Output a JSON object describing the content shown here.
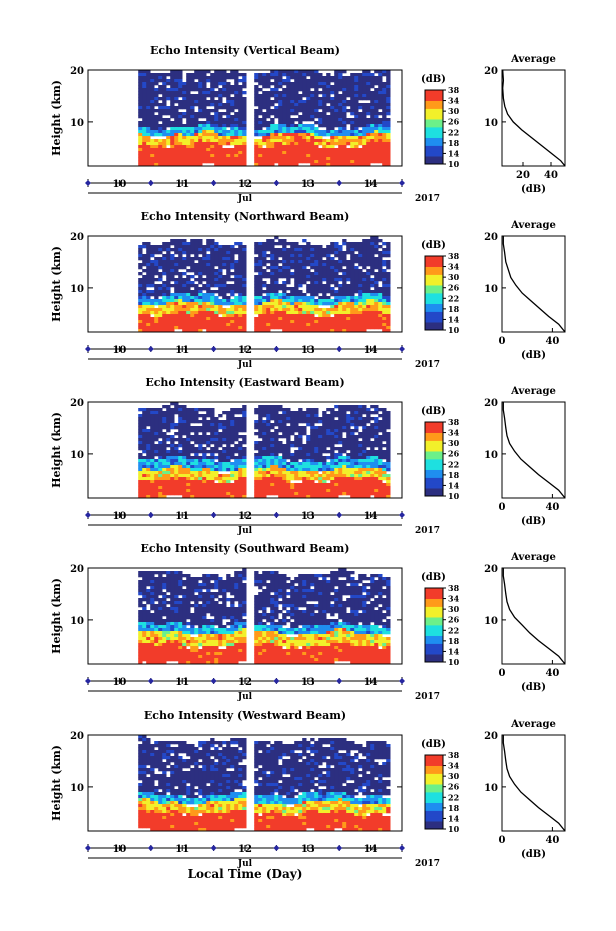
{
  "chart_data": [
    {
      "type": "heatmap",
      "title": "Echo Intensity (Vertical Beam)",
      "ylabel": "Height (km)",
      "ylim": [
        1.5,
        20
      ],
      "yticks": [
        10,
        20
      ],
      "xticks": [
        "10",
        "11",
        "12",
        "13",
        "14"
      ],
      "xlim": [
        9.5,
        14.5
      ],
      "month_label": "Jul",
      "year_label": "2017",
      "data_start_day": 10.3,
      "data_gap_day": 12.05,
      "data_end_day": 14.25,
      "colorbar": {
        "title": "(dB)",
        "ticks": [
          10,
          14,
          18,
          22,
          26,
          30,
          34,
          38
        ],
        "range": [
          10,
          38
        ]
      },
      "layers": [
        {
          "bottom": 1.5,
          "top": 5.5,
          "dB": 38
        },
        {
          "bottom": 5.5,
          "top": 7.5,
          "dB": 32
        },
        {
          "bottom": 7.5,
          "top": 9.0,
          "dB": 20
        },
        {
          "bottom": 9.0,
          "top": 20.0,
          "dB": 10
        }
      ],
      "average": {
        "title": "Average",
        "xlabel": "(dB)",
        "xticks": [
          20,
          40
        ],
        "xlim": [
          5,
          50
        ],
        "yticks": [
          10,
          20
        ],
        "ylim": [
          1.5,
          20
        ],
        "profile": [
          [
            50,
            1.5
          ],
          [
            47,
            2.5
          ],
          [
            40,
            4
          ],
          [
            33,
            5.5
          ],
          [
            26,
            7
          ],
          [
            19,
            8.5
          ],
          [
            13,
            10
          ],
          [
            9,
            11.5
          ],
          [
            7,
            13
          ],
          [
            6,
            14.5
          ],
          [
            5.5,
            16.5
          ],
          [
            6,
            18
          ],
          [
            5.5,
            20
          ]
        ]
      }
    },
    {
      "type": "heatmap",
      "title": "Echo Intensity (Northward Beam)",
      "ylabel": "Height (km)",
      "ylim": [
        1.5,
        20
      ],
      "yticks": [
        10,
        20
      ],
      "xticks": [
        "10",
        "11",
        "12",
        "13",
        "14"
      ],
      "xlim": [
        9.5,
        14.5
      ],
      "month_label": "Jul",
      "year_label": "2017",
      "data_start_day": 10.3,
      "data_gap_day": 12.05,
      "data_end_day": 14.25,
      "colorbar": {
        "title": "(dB)",
        "ticks": [
          10,
          14,
          18,
          22,
          26,
          30,
          34,
          38
        ],
        "range": [
          10,
          38
        ]
      },
      "layers": [
        {
          "bottom": 1.5,
          "top": 5.0,
          "dB": 38
        },
        {
          "bottom": 5.0,
          "top": 7.0,
          "dB": 31
        },
        {
          "bottom": 7.0,
          "top": 8.5,
          "dB": 20
        },
        {
          "bottom": 8.5,
          "top": 19.0,
          "dB": 10
        }
      ],
      "average": {
        "title": "Average",
        "xlabel": "(dB)",
        "xticks": [
          0,
          40
        ],
        "xlim": [
          0,
          50
        ],
        "yticks": [
          10,
          20
        ],
        "ylim": [
          1.5,
          20
        ],
        "profile": [
          [
            50,
            1.5
          ],
          [
            45,
            3
          ],
          [
            37,
            4.5
          ],
          [
            30,
            6
          ],
          [
            23,
            7.5
          ],
          [
            16,
            9
          ],
          [
            11,
            10.5
          ],
          [
            7,
            12
          ],
          [
            5,
            13.5
          ],
          [
            3,
            15
          ],
          [
            2,
            17
          ],
          [
            1,
            18.5
          ],
          [
            1,
            20
          ]
        ]
      }
    },
    {
      "type": "heatmap",
      "title": "Echo Intensity (Eastward Beam)",
      "ylabel": "Height (km)",
      "ylim": [
        1.5,
        20
      ],
      "yticks": [
        10,
        20
      ],
      "xticks": [
        "10",
        "11",
        "12",
        "13",
        "14"
      ],
      "xlim": [
        9.5,
        14.5
      ],
      "month_label": "Jul",
      "year_label": "2017",
      "data_start_day": 10.3,
      "data_gap_day": 12.05,
      "data_end_day": 14.25,
      "colorbar": {
        "title": "(dB)",
        "ticks": [
          10,
          14,
          18,
          22,
          26,
          30,
          34,
          38
        ],
        "range": [
          10,
          38
        ]
      },
      "layers": [
        {
          "bottom": 1.5,
          "top": 5.0,
          "dB": 38
        },
        {
          "bottom": 5.0,
          "top": 7.0,
          "dB": 31
        },
        {
          "bottom": 7.0,
          "top": 9.0,
          "dB": 20
        },
        {
          "bottom": 9.0,
          "top": 19.0,
          "dB": 10
        }
      ],
      "average": {
        "title": "Average",
        "xlabel": "(dB)",
        "xticks": [
          0,
          40
        ],
        "xlim": [
          0,
          50
        ],
        "yticks": [
          10,
          20
        ],
        "ylim": [
          1.5,
          20
        ],
        "profile": [
          [
            50,
            1.5
          ],
          [
            45,
            3
          ],
          [
            37,
            4.5
          ],
          [
            29,
            6
          ],
          [
            22,
            7.5
          ],
          [
            15,
            9
          ],
          [
            10,
            10.5
          ],
          [
            6,
            12
          ],
          [
            4,
            13.5
          ],
          [
            3,
            15
          ],
          [
            2,
            17
          ],
          [
            1,
            18.5
          ],
          [
            1,
            20
          ]
        ]
      }
    },
    {
      "type": "heatmap",
      "title": "Echo Intensity (Southward Beam)",
      "ylabel": "Height (km)",
      "ylim": [
        1.5,
        20
      ],
      "yticks": [
        10,
        20
      ],
      "xticks": [
        "10",
        "11",
        "12",
        "13",
        "14"
      ],
      "xlim": [
        9.5,
        14.5
      ],
      "month_label": "Jul",
      "year_label": "2017",
      "data_start_day": 10.3,
      "data_gap_day": 12.05,
      "data_end_day": 14.25,
      "colorbar": {
        "title": "(dB)",
        "ticks": [
          10,
          14,
          18,
          22,
          26,
          30,
          34,
          38
        ],
        "range": [
          10,
          38
        ]
      },
      "layers": [
        {
          "bottom": 1.5,
          "top": 5.0,
          "dB": 38
        },
        {
          "bottom": 5.0,
          "top": 7.5,
          "dB": 31
        },
        {
          "bottom": 7.5,
          "top": 9.0,
          "dB": 20
        },
        {
          "bottom": 9.0,
          "top": 19.0,
          "dB": 10
        }
      ],
      "average": {
        "title": "Average",
        "xlabel": "(dB)",
        "xticks": [
          0,
          40
        ],
        "xlim": [
          0,
          50
        ],
        "yticks": [
          10,
          20
        ],
        "ylim": [
          1.5,
          20
        ],
        "profile": [
          [
            50,
            1.5
          ],
          [
            45,
            3
          ],
          [
            37,
            4.5
          ],
          [
            29,
            6
          ],
          [
            22,
            7.5
          ],
          [
            16,
            9
          ],
          [
            10,
            10.5
          ],
          [
            6,
            12
          ],
          [
            4,
            13.5
          ],
          [
            3,
            15
          ],
          [
            2,
            17
          ],
          [
            1,
            18.5
          ],
          [
            1,
            20
          ]
        ]
      }
    },
    {
      "type": "heatmap",
      "title": "Echo Intensity (Westward Beam)",
      "ylabel": "Height (km)",
      "ylim": [
        1.5,
        20
      ],
      "yticks": [
        10,
        20
      ],
      "xticks": [
        "10",
        "11",
        "12",
        "13",
        "14"
      ],
      "xlim": [
        9.5,
        14.5
      ],
      "month_label": "Jul",
      "year_label": "2017",
      "data_start_day": 10.3,
      "data_gap_day": 12.05,
      "data_end_day": 14.25,
      "colorbar": {
        "title": "(dB)",
        "ticks": [
          10,
          14,
          18,
          22,
          26,
          30,
          34,
          38
        ],
        "range": [
          10,
          38
        ]
      },
      "layers": [
        {
          "bottom": 1.5,
          "top": 5.0,
          "dB": 38
        },
        {
          "bottom": 5.0,
          "top": 7.0,
          "dB": 31
        },
        {
          "bottom": 7.0,
          "top": 8.5,
          "dB": 20
        },
        {
          "bottom": 8.5,
          "top": 19.0,
          "dB": 10
        }
      ],
      "average": {
        "title": "Average",
        "xlabel": "(dB)",
        "xticks": [
          0,
          40
        ],
        "xlim": [
          0,
          50
        ],
        "yticks": [
          10,
          20
        ],
        "ylim": [
          1.5,
          20
        ],
        "profile": [
          [
            50,
            1.5
          ],
          [
            45,
            3
          ],
          [
            37,
            4.5
          ],
          [
            29,
            6
          ],
          [
            22,
            7.5
          ],
          [
            15,
            9
          ],
          [
            10,
            10.5
          ],
          [
            6,
            12
          ],
          [
            4,
            13.5
          ],
          [
            3,
            15
          ],
          [
            2,
            17
          ],
          [
            1,
            18.5
          ],
          [
            1,
            20
          ]
        ]
      }
    }
  ],
  "xaxis_title": "Local Time (Day)",
  "colors": {
    "colormap": [
      "#2c2f80",
      "#2348c8",
      "#1f8ef0",
      "#1ee0e0",
      "#6cf08a",
      "#f2f02a",
      "#ff9a1a",
      "#f23c2a"
    ],
    "marker": "#2626a0",
    "background_missing": "#ffffff"
  }
}
